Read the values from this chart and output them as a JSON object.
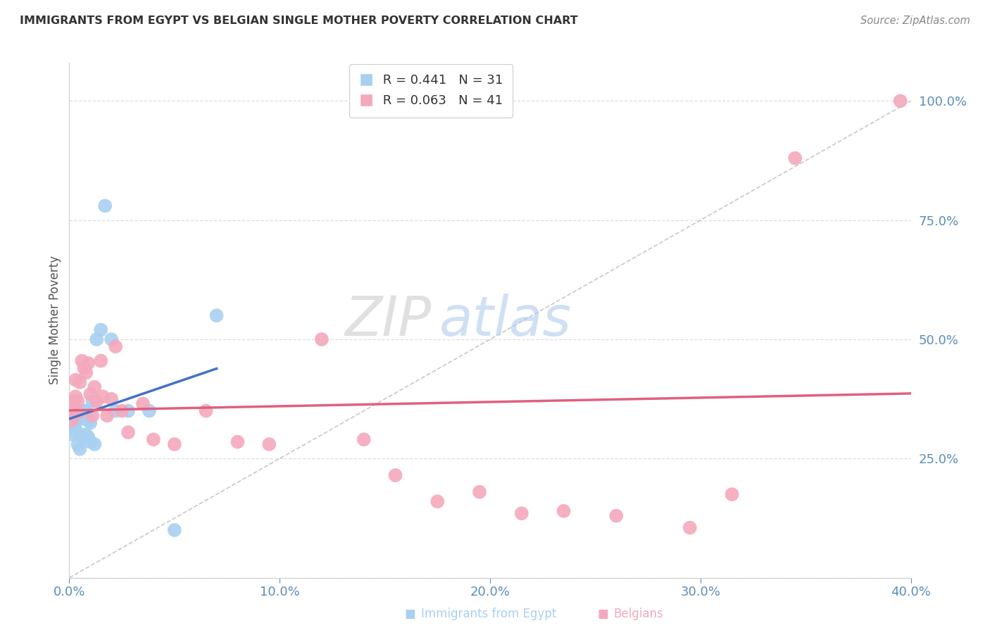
{
  "title": "IMMIGRANTS FROM EGYPT VS BELGIAN SINGLE MOTHER POVERTY CORRELATION CHART",
  "source": "Source: ZipAtlas.com",
  "xlabel_blue": "Immigrants from Egypt",
  "xlabel_pink": "Belgians",
  "ylabel": "Single Mother Poverty",
  "R_blue": 0.441,
  "N_blue": 31,
  "R_pink": 0.063,
  "N_pink": 41,
  "xlim": [
    0.0,
    0.4
  ],
  "ylim": [
    0.0,
    1.08
  ],
  "xticks": [
    0.0,
    0.1,
    0.2,
    0.3,
    0.4
  ],
  "yticks_right": [
    0.25,
    0.5,
    0.75,
    1.0
  ],
  "blue_color": "#A8D0F0",
  "pink_color": "#F4A8BC",
  "blue_line_color": "#4472C4",
  "pink_line_color": "#E06080",
  "grid_color": "#DDDDDD",
  "title_color": "#333333",
  "axis_label_color": "#5B8DB8",
  "watermark_zip": "ZIP",
  "watermark_atlas": "atlas",
  "blue_x": [
    0.001,
    0.002,
    0.002,
    0.003,
    0.003,
    0.004,
    0.004,
    0.005,
    0.005,
    0.005,
    0.006,
    0.006,
    0.007,
    0.007,
    0.008,
    0.008,
    0.009,
    0.009,
    0.01,
    0.01,
    0.011,
    0.012,
    0.013,
    0.015,
    0.017,
    0.02,
    0.022,
    0.028,
    0.038,
    0.05,
    0.07
  ],
  "blue_y": [
    0.335,
    0.3,
    0.32,
    0.31,
    0.345,
    0.33,
    0.28,
    0.335,
    0.3,
    0.27,
    0.345,
    0.3,
    0.35,
    0.295,
    0.35,
    0.3,
    0.33,
    0.295,
    0.325,
    0.285,
    0.37,
    0.28,
    0.5,
    0.52,
    0.78,
    0.5,
    0.35,
    0.35,
    0.35,
    0.1,
    0.55
  ],
  "pink_x": [
    0.001,
    0.002,
    0.002,
    0.003,
    0.003,
    0.004,
    0.004,
    0.005,
    0.006,
    0.007,
    0.008,
    0.009,
    0.01,
    0.011,
    0.012,
    0.013,
    0.015,
    0.016,
    0.018,
    0.02,
    0.022,
    0.025,
    0.028,
    0.035,
    0.04,
    0.05,
    0.065,
    0.08,
    0.095,
    0.12,
    0.14,
    0.155,
    0.175,
    0.195,
    0.215,
    0.235,
    0.26,
    0.295,
    0.315,
    0.345,
    0.395
  ],
  "pink_y": [
    0.33,
    0.355,
    0.37,
    0.38,
    0.415,
    0.37,
    0.345,
    0.41,
    0.455,
    0.44,
    0.43,
    0.45,
    0.385,
    0.34,
    0.4,
    0.37,
    0.455,
    0.38,
    0.34,
    0.375,
    0.485,
    0.35,
    0.305,
    0.365,
    0.29,
    0.28,
    0.35,
    0.285,
    0.28,
    0.5,
    0.29,
    0.215,
    0.16,
    0.18,
    0.135,
    0.14,
    0.13,
    0.105,
    0.175,
    0.88,
    1.0
  ]
}
